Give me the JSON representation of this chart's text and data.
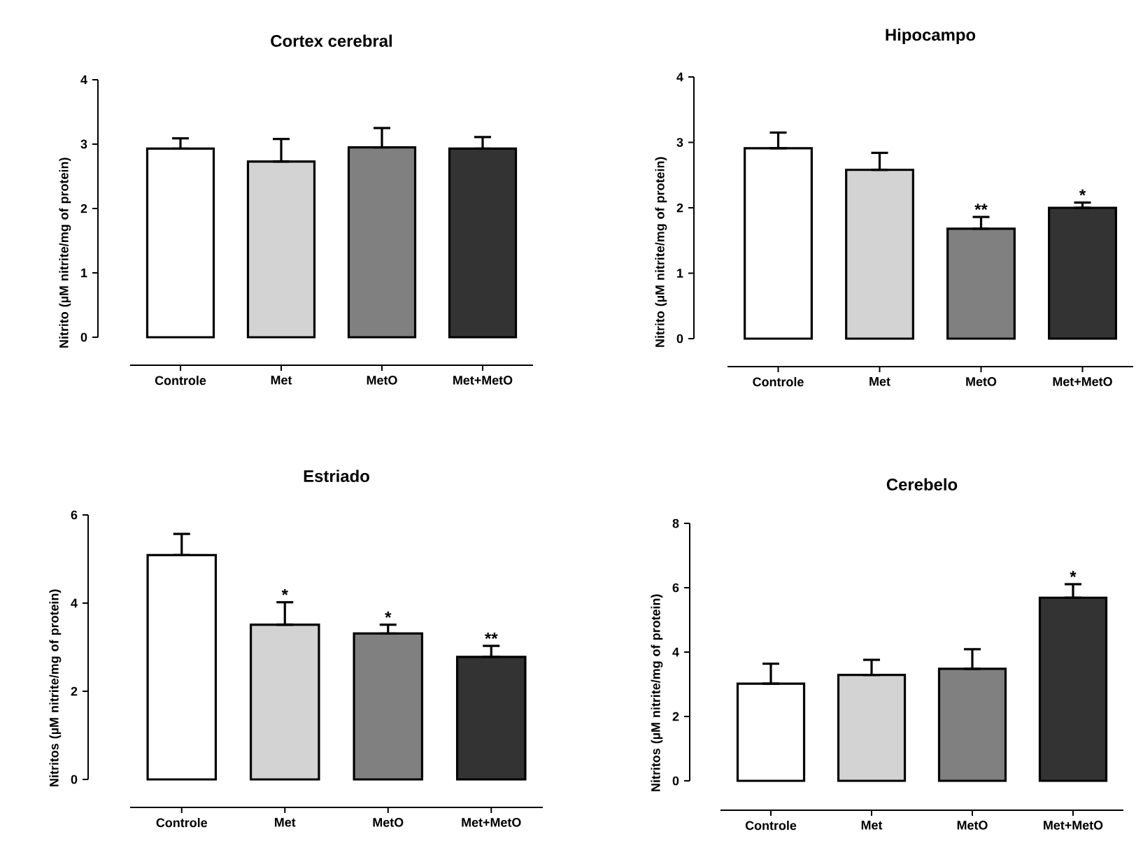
{
  "chart_data": [
    {
      "type": "bar",
      "title": "Cortex cerebral",
      "ylabel": "Nitrito (µM nitrite/mg of protein)",
      "categories": [
        "Controle",
        "Met",
        "MetO",
        "Met+MetO"
      ],
      "values": [
        2.93,
        2.73,
        2.95,
        2.93
      ],
      "colors": [
        "#ffffff",
        "#d3d3d3",
        "#808080",
        "#333333"
      ],
      "errors": [
        [
          2.93,
          3.09
        ],
        [
          2.73,
          3.08
        ],
        [
          2.95,
          3.25
        ],
        [
          2.93,
          3.11
        ]
      ],
      "ylim": [
        0,
        4
      ],
      "yticks": [
        0,
        1,
        2,
        3,
        4
      ]
    },
    {
      "type": "bar",
      "title": "Hipocampo",
      "ylabel": "Nitrito (µM nitrite/mg of protein)",
      "categories": [
        "Controle",
        "Met",
        "MetO",
        "Met+MetO"
      ],
      "values": [
        2.91,
        2.58,
        1.68,
        2.0
      ],
      "colors": [
        "#ffffff",
        "#d3d3d3",
        "#808080",
        "#333333"
      ],
      "errors": [
        [
          2.91,
          3.15
        ],
        [
          2.58,
          2.84
        ],
        [
          1.68,
          1.86
        ],
        [
          2.0,
          2.08
        ]
      ],
      "ylim": [
        0,
        4
      ],
      "yticks": [
        0,
        1,
        2,
        3,
        4
      ],
      "annotations": [
        {
          "text": "**",
          "x": "MetO",
          "y": 1.86
        },
        {
          "text": "*",
          "x": "Met+MetO",
          "y": 2.08
        }
      ]
    },
    {
      "type": "bar",
      "title": "Estriado",
      "ylabel": "Nitritos (µM nitrite/mg of protein)",
      "categories": [
        "Controle",
        "Met",
        "MetO",
        "Met+MetO"
      ],
      "values": [
        5.09,
        3.51,
        3.31,
        2.78
      ],
      "colors": [
        "#ffffff",
        "#d3d3d3",
        "#808080",
        "#333333"
      ],
      "errors": [
        [
          5.09,
          5.57
        ],
        [
          3.51,
          4.02
        ],
        [
          3.31,
          3.51
        ],
        [
          2.78,
          3.03
        ]
      ],
      "ylim": [
        0,
        6
      ],
      "yticks": [
        0,
        2,
        4,
        6
      ],
      "annotations": [
        {
          "text": "*",
          "x": "Met",
          "y": 4.02
        },
        {
          "text": "*",
          "x": "MetO",
          "y": 3.51
        },
        {
          "text": "**",
          "x": "Met+MetO",
          "y": 3.03
        }
      ]
    },
    {
      "type": "bar",
      "title": "Cerebelo",
      "ylabel": "Nitritos (µM nitrite/mg of protein)",
      "categories": [
        "Controle",
        "Met",
        "MetO",
        "Met+MetO"
      ],
      "values": [
        3.02,
        3.29,
        3.48,
        5.69
      ],
      "colors": [
        "#ffffff",
        "#d3d3d3",
        "#808080",
        "#333333"
      ],
      "errors": [
        [
          3.02,
          3.64
        ],
        [
          3.29,
          3.76
        ],
        [
          3.48,
          4.09
        ],
        [
          5.69,
          6.11
        ]
      ],
      "ylim": [
        0,
        8
      ],
      "yticks": [
        0,
        2,
        4,
        6,
        8
      ],
      "annotations": [
        {
          "text": "*",
          "x": "Met+MetO",
          "y": 6.11
        }
      ]
    }
  ]
}
